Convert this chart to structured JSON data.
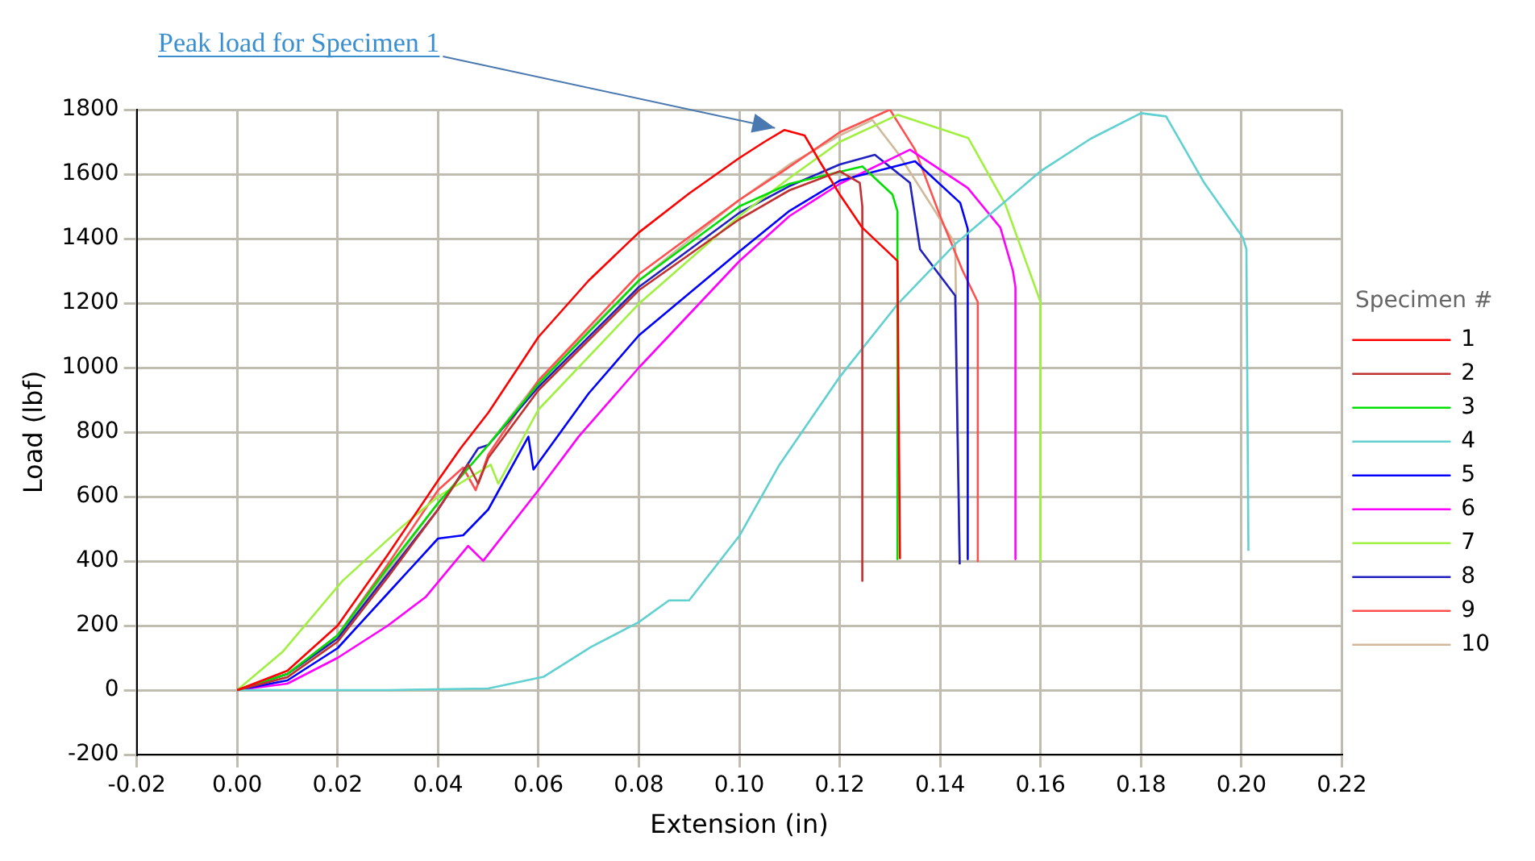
{
  "chart_data": {
    "type": "line",
    "xlabel": "Extension (in)",
    "ylabel": "Load (lbf)",
    "legend_title": "Specimen #",
    "legend": "right",
    "grid": true,
    "marker": "none",
    "line_style": "solid",
    "xlim": [
      -0.02,
      0.22
    ],
    "xticks": [
      {
        "value": -0.02,
        "label": "-0.02"
      },
      {
        "value": 0,
        "label": "0.00"
      },
      {
        "value": 0.02,
        "label": "0.02"
      },
      {
        "value": 0.04,
        "label": "0.04"
      },
      {
        "value": 0.06,
        "label": "0.06"
      },
      {
        "value": 0.08,
        "label": "0.08"
      },
      {
        "value": 0.1,
        "label": "0.10"
      },
      {
        "value": 0.12,
        "label": "0.12"
      },
      {
        "value": 0.14,
        "label": "0.14"
      },
      {
        "value": 0.16,
        "label": "0.16"
      },
      {
        "value": 0.18,
        "label": "0.18"
      },
      {
        "value": 0.2,
        "label": "0.20"
      },
      {
        "value": 0.22,
        "label": "0.22"
      }
    ],
    "ylim": [
      -200,
      1800
    ],
    "yticks": [
      -200,
      0,
      200,
      400,
      600,
      800,
      1000,
      1200,
      1400,
      1600,
      1800
    ],
    "annotations": [
      {
        "text": "Peak load for Specimen 1",
        "x": 0.109,
        "y": 1737
      }
    ],
    "series": [
      {
        "name": "1",
        "color": "#ff0000",
        "x": [
          0,
          0.01,
          0.02,
          0.03,
          0.04,
          0.0445,
          0.05,
          0.06,
          0.07,
          0.08,
          0.09,
          0.1,
          0.105,
          0.109,
          0.113,
          0.116,
          0.12,
          0.1245,
          0.1315,
          0.132
        ],
        "values": [
          0,
          60,
          200,
          420,
          650,
          750,
          860,
          1095,
          1270,
          1419,
          1540,
          1650,
          1700,
          1737,
          1720,
          1640,
          1537,
          1434,
          1331,
          406
        ]
      },
      {
        "name": "2",
        "color": "#c03030",
        "x": [
          0,
          0.01,
          0.02,
          0.03,
          0.04,
          0.046,
          0.048,
          0.05,
          0.06,
          0.08,
          0.1,
          0.11,
          0.12,
          0.124,
          0.1245,
          0.1245
        ],
        "values": [
          0,
          40,
          150,
          350,
          560,
          700,
          640,
          720,
          930,
          1240,
          1460,
          1550,
          1609,
          1573,
          1500,
          339
        ]
      },
      {
        "name": "3",
        "color": "#00e000",
        "x": [
          0,
          0.01,
          0.02,
          0.03,
          0.04,
          0.05,
          0.06,
          0.08,
          0.1,
          0.11,
          0.1245,
          0.1305,
          0.1315,
          0.1315
        ],
        "values": [
          0,
          50,
          170,
          380,
          580,
          760,
          950,
          1270,
          1500,
          1570,
          1624,
          1537,
          1485,
          406
        ]
      },
      {
        "name": "4",
        "color": "#60d0d0",
        "x": [
          0,
          0.03,
          0.05,
          0.061,
          0.0705,
          0.08,
          0.086,
          0.09,
          0.1,
          0.108,
          0.12,
          0.1316,
          0.143,
          0.16,
          0.17,
          0.18,
          0.185,
          0.1926,
          0.2003,
          0.201,
          0.2014
        ],
        "values": [
          0,
          0,
          5,
          41,
          134,
          211,
          278,
          278,
          478,
          699,
          971,
          1198,
          1383,
          1609,
          1710,
          1789,
          1779,
          1573,
          1403,
          1367,
          432
        ]
      },
      {
        "name": "5",
        "color": "#0000ff",
        "x": [
          0,
          0.01,
          0.02,
          0.03,
          0.04,
          0.045,
          0.05,
          0.058,
          0.059,
          0.07,
          0.08,
          0.1,
          0.11,
          0.12,
          0.135,
          0.144,
          0.1455,
          0.1455
        ],
        "values": [
          0,
          30,
          130,
          300,
          470,
          480,
          560,
          786,
          684,
          920,
          1100,
          1360,
          1486,
          1580,
          1640,
          1511,
          1430,
          406
        ]
      },
      {
        "name": "6",
        "color": "#ff00ff",
        "x": [
          0,
          0.01,
          0.02,
          0.03,
          0.0375,
          0.046,
          0.049,
          0.06,
          0.068,
          0.08,
          0.1,
          0.11,
          0.12,
          0.134,
          0.1455,
          0.152,
          0.1545,
          0.155,
          0.155
        ],
        "values": [
          0,
          20,
          100,
          200,
          288,
          447,
          401,
          620,
          786,
          1000,
          1330,
          1470,
          1570,
          1676,
          1557,
          1434,
          1300,
          1249,
          406
        ]
      },
      {
        "name": "7",
        "color": "#a0f040",
        "x": [
          0,
          0.009,
          0.021,
          0.033,
          0.04,
          0.0505,
          0.052,
          0.06,
          0.08,
          0.1,
          0.11,
          0.12,
          0.1316,
          0.1456,
          0.153,
          0.16,
          0.16
        ],
        "values": [
          0,
          118,
          339,
          509,
          600,
          699,
          640,
          870,
          1198,
          1470,
          1588,
          1700,
          1784,
          1712,
          1506,
          1203,
          400
        ]
      },
      {
        "name": "8",
        "color": "#2020c0",
        "x": [
          0,
          0.01,
          0.02,
          0.03,
          0.04,
          0.048,
          0.05,
          0.06,
          0.08,
          0.1,
          0.11,
          0.12,
          0.127,
          0.134,
          0.136,
          0.143,
          0.1439
        ],
        "values": [
          0,
          50,
          160,
          360,
          560,
          750,
          760,
          940,
          1250,
          1480,
          1563,
          1630,
          1660,
          1573,
          1367,
          1223,
          390
        ]
      },
      {
        "name": "9",
        "color": "#ff5050",
        "x": [
          0,
          0.01,
          0.02,
          0.03,
          0.04,
          0.045,
          0.0475,
          0.05,
          0.06,
          0.08,
          0.1,
          0.1087,
          0.12,
          0.13,
          0.135,
          0.14,
          0.1445,
          0.1475,
          0.1475
        ],
        "values": [
          0,
          50,
          170,
          390,
          620,
          690,
          620,
          730,
          960,
          1290,
          1520,
          1609,
          1730,
          1800,
          1676,
          1470,
          1300,
          1203,
          400
        ]
      },
      {
        "name": "10",
        "color": "#d0b898",
        "x": [
          0,
          0.01,
          0.02,
          0.03,
          0.04,
          0.05,
          0.06,
          0.08,
          0.1,
          0.11,
          0.12,
          0.1265,
          0.1316,
          0.139,
          0.143,
          0.1439
        ],
        "values": [
          0,
          40,
          160,
          370,
          580,
          760,
          960,
          1270,
          1520,
          1630,
          1720,
          1768,
          1665,
          1485,
          1383,
          390
        ]
      }
    ]
  }
}
